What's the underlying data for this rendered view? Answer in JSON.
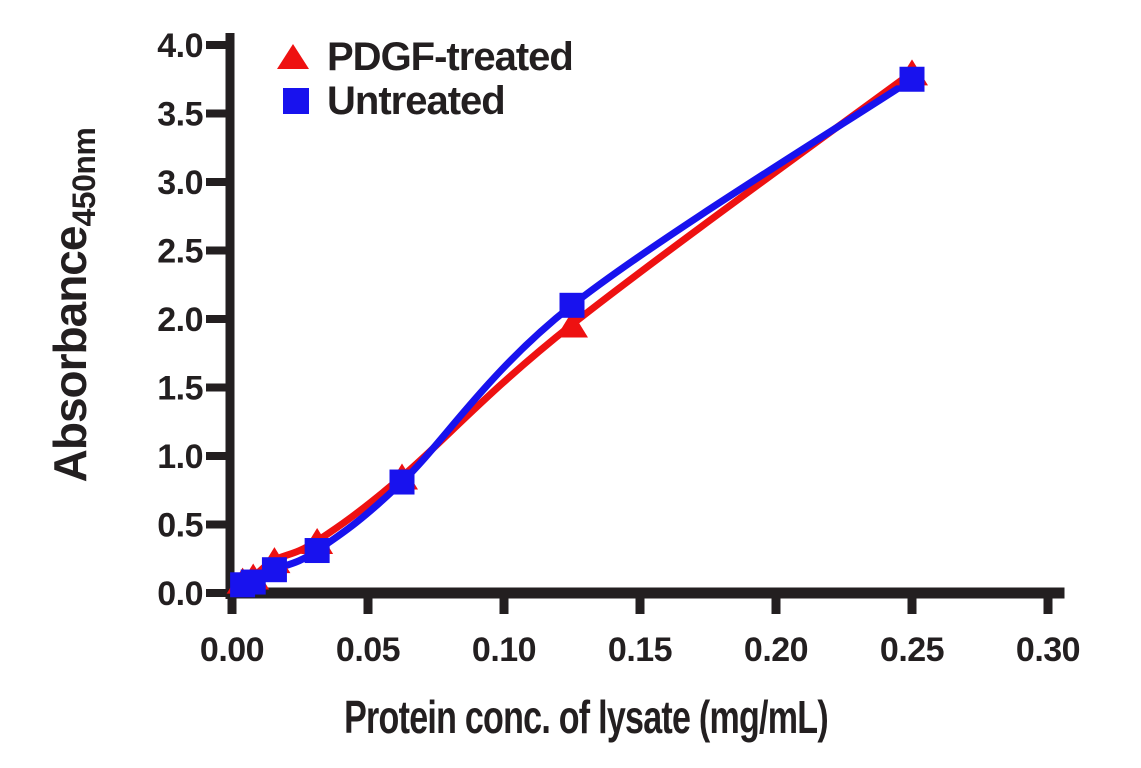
{
  "chart_data": {
    "type": "line",
    "title": "",
    "xlabel": "Protein conc. of lysate (mg/mL)",
    "ylabel": "Absorbance",
    "ylabel_subscript": "450nm",
    "xlim": [
      0,
      0.3
    ],
    "ylim": [
      0,
      4.0
    ],
    "grid": false,
    "legend_position": "top-left",
    "axis_color": "#231f20",
    "background_color": "#ffffff",
    "line_width": 7,
    "xticks": {
      "values": [
        0,
        0.05,
        0.1,
        0.15,
        0.2,
        0.25,
        0.3
      ],
      "labels": [
        "0.00",
        "0.05",
        "0.10",
        "0.15",
        "0.20",
        "0.25",
        "0.30"
      ]
    },
    "yticks": {
      "values": [
        0,
        0.5,
        1.0,
        1.5,
        2.0,
        2.5,
        3.0,
        3.5,
        4.0
      ],
      "labels": [
        "0.0",
        "0.5",
        "1.0",
        "1.5",
        "2.0",
        "2.5",
        "3.0",
        "3.5",
        "4.0"
      ]
    },
    "x": [
      0.0039,
      0.0078,
      0.0156,
      0.0313,
      0.0625,
      0.125,
      0.25
    ],
    "series": [
      {
        "name": "PDGF-treated",
        "marker": "triangle",
        "color": "#ee1111",
        "values": [
          0.09,
          0.12,
          0.24,
          0.38,
          0.85,
          1.96,
          3.8
        ]
      },
      {
        "name": "Untreated",
        "marker": "square",
        "color": "#1812ee",
        "values": [
          0.06,
          0.08,
          0.17,
          0.31,
          0.81,
          2.1,
          3.75
        ]
      }
    ]
  }
}
